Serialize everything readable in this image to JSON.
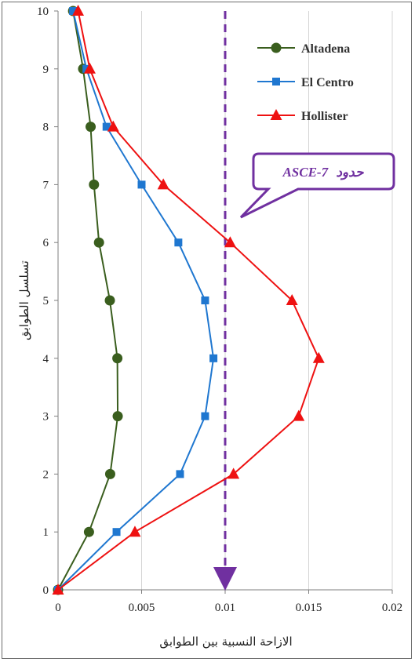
{
  "chart_data": {
    "type": "line",
    "xlabel": "الازاحة النسبية بين الطوابق",
    "ylabel": "تسلسل الطوابق",
    "xlim": [
      0,
      0.02
    ],
    "ylim": [
      0,
      10
    ],
    "xticks": [
      0,
      0.005,
      0.01,
      0.015,
      0.02
    ],
    "xtick_labels": [
      "0",
      "0.005",
      "0.01",
      "0.015",
      "0.02"
    ],
    "yticks": [
      0,
      1,
      2,
      3,
      4,
      5,
      6,
      7,
      8,
      9,
      10
    ],
    "ytick_labels": [
      "0",
      "1",
      "2",
      "3",
      "4",
      "5",
      "6",
      "7",
      "8",
      "9",
      "10"
    ],
    "grid": "vertical gridlines",
    "legend_position": "top-right",
    "series": [
      {
        "name": "Altadena",
        "color": "#3a5e1e",
        "marker": "circle",
        "x": [
          0,
          0.00185,
          0.00312,
          0.00357,
          0.00355,
          0.0031,
          0.00245,
          0.00215,
          0.00195,
          0.0015,
          0.0009
        ],
        "y": [
          0,
          1,
          2,
          3,
          4,
          5,
          6,
          7,
          8,
          9,
          10
        ]
      },
      {
        "name": "El Centro",
        "color": "#1f77d0",
        "marker": "square",
        "x": [
          0,
          0.0035,
          0.0073,
          0.0088,
          0.0093,
          0.0088,
          0.0072,
          0.005,
          0.0029,
          0.0017,
          0.0009
        ],
        "y": [
          0,
          1,
          2,
          3,
          4,
          5,
          6,
          7,
          8,
          9,
          10
        ]
      },
      {
        "name": "Hollister",
        "color": "#ee1111",
        "marker": "triangle",
        "x": [
          0,
          0.0046,
          0.0105,
          0.0144,
          0.0156,
          0.014,
          0.0103,
          0.0063,
          0.0033,
          0.0019,
          0.0012
        ],
        "y": [
          0,
          1,
          2,
          3,
          4,
          5,
          6,
          7,
          8,
          9,
          10
        ]
      }
    ],
    "limit_line": {
      "x": 0.01,
      "color": "#7030a0",
      "style": "dashed",
      "label_prefix": "حدود",
      "label_code": "ASCE-7"
    }
  }
}
